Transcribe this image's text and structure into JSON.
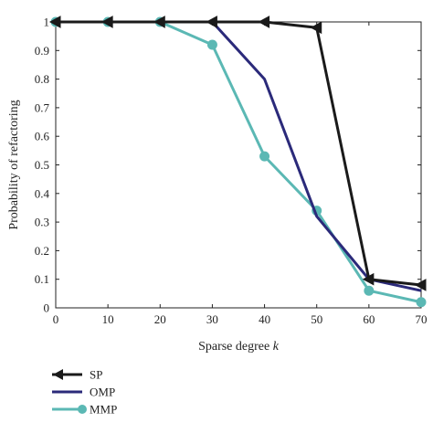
{
  "chart_data": {
    "type": "line",
    "title": "",
    "xlabel": "Sparse degree ",
    "xlabel_var": "k",
    "ylabel": "Probability of refactoring",
    "xlim": [
      0,
      70
    ],
    "ylim": [
      0,
      1
    ],
    "xticks": [
      "0",
      "10",
      "20",
      "30",
      "40",
      "50",
      "60",
      "70"
    ],
    "yticks": [
      "0",
      "0.1",
      "0.2",
      "0.3",
      "0.4",
      "0.5",
      "0.6",
      "0.7",
      "0.8",
      "0.9",
      "1"
    ],
    "grid": false,
    "legend_position": "bottom-left",
    "x": [
      0,
      10,
      20,
      30,
      40,
      50,
      60,
      70
    ],
    "series": [
      {
        "name": "SP",
        "color": "#1a1a1a",
        "marker": "triangle-left",
        "values": [
          1,
          1,
          1,
          1,
          1,
          0.98,
          0.1,
          0.08
        ]
      },
      {
        "name": "OMP",
        "color": "#2b2a7a",
        "marker": "none",
        "values": [
          1,
          1,
          1,
          1,
          0.8,
          0.32,
          0.1,
          0.06
        ]
      },
      {
        "name": "MMP",
        "color": "#5bb8b4",
        "marker": "circle",
        "values": [
          1,
          1,
          1,
          0.92,
          0.53,
          0.34,
          0.06,
          0.02
        ]
      }
    ]
  }
}
